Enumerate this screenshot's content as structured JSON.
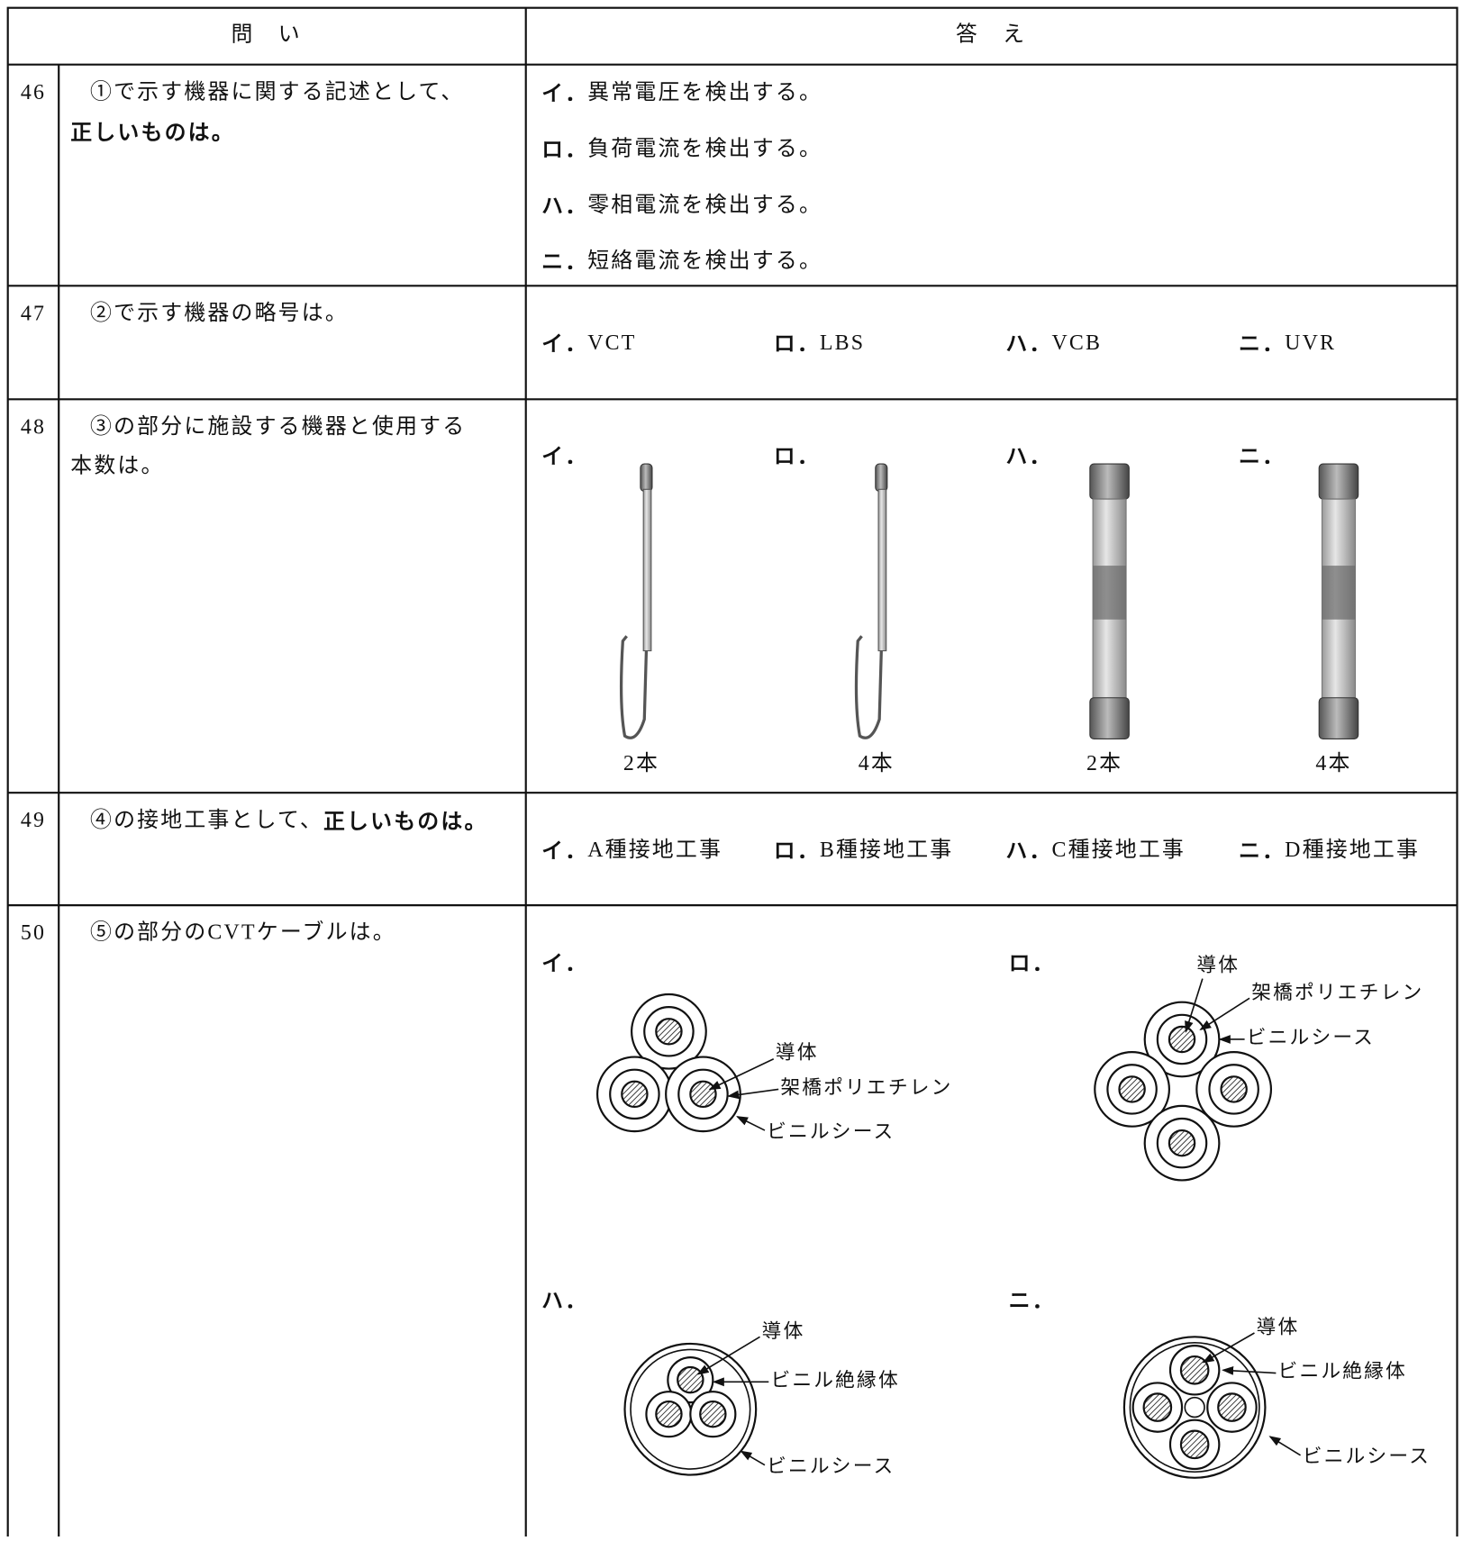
{
  "header": {
    "question": "問　い",
    "answer": "答　え"
  },
  "rows": [
    {
      "number": "46",
      "question": [
        [
          {
            "text": "①で示す機器に関する記述として、"
          }
        ],
        [
          {
            "text": "正しいものは。",
            "bold": true
          }
        ]
      ],
      "options": [
        {
          "label": "イ．",
          "text": "異常電圧を検出する。"
        },
        {
          "label": "ロ．",
          "text": "負荷電流を検出する。"
        },
        {
          "label": "ハ．",
          "text": "零相電流を検出する。"
        },
        {
          "label": "ニ．",
          "text": "短絡電流を検出する。"
        }
      ]
    },
    {
      "number": "47",
      "question": [
        [
          {
            "text": "②で示す機器の略号は。"
          }
        ]
      ],
      "options": [
        {
          "label": "イ．",
          "text": "VCT"
        },
        {
          "label": "ロ．",
          "text": "LBS"
        },
        {
          "label": "ハ．",
          "text": "VCB"
        },
        {
          "label": "ニ．",
          "text": "UVR"
        }
      ]
    },
    {
      "number": "48",
      "question": [
        [
          {
            "text": "③の部分に施設する機器と使用する"
          }
        ],
        [
          {
            "text": "本数は。"
          }
        ]
      ],
      "options": [
        {
          "label": "イ．",
          "caption": "2本"
        },
        {
          "label": "ロ．",
          "caption": "4本"
        },
        {
          "label": "ハ．",
          "caption": "2本"
        },
        {
          "label": "ニ．",
          "caption": "4本"
        }
      ]
    },
    {
      "number": "49",
      "question": [
        [
          {
            "text": "④の接地工事として、"
          },
          {
            "text": "正しいものは。",
            "bold": true
          }
        ]
      ],
      "options": [
        {
          "label": "イ．",
          "text": "A種接地工事"
        },
        {
          "label": "ロ．",
          "text": "B種接地工事"
        },
        {
          "label": "ハ．",
          "text": "C種接地工事"
        },
        {
          "label": "ニ．",
          "text": "D種接地工事"
        }
      ]
    },
    {
      "number": "50",
      "question": [
        [
          {
            "text": "⑤の部分のCVTケーブルは。"
          }
        ]
      ],
      "options": [
        {
          "label": "イ．",
          "callouts": [
            "導体",
            "架橋ポリエチレン",
            "ビニルシース"
          ]
        },
        {
          "label": "ロ．",
          "callouts": [
            "導体",
            "架橋ポリエチレン",
            "ビニルシース"
          ]
        },
        {
          "label": "ハ．",
          "callouts": [
            "導体",
            "ビニル絶縁体",
            "ビニルシース"
          ]
        },
        {
          "label": "ニ．",
          "callouts": [
            "導体",
            "ビニル絶縁体",
            "ビニルシース"
          ]
        }
      ]
    }
  ]
}
